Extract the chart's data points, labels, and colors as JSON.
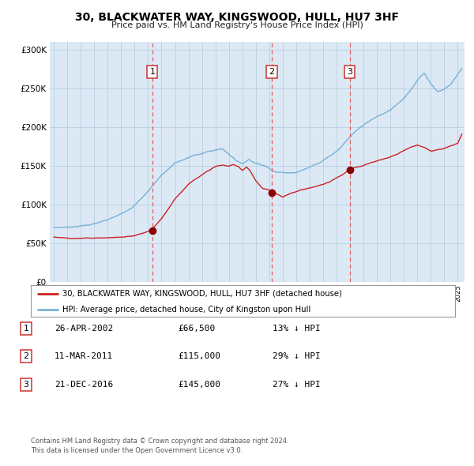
{
  "title": "30, BLACKWATER WAY, KINGSWOOD, HULL, HU7 3HF",
  "subtitle": "Price paid vs. HM Land Registry's House Price Index (HPI)",
  "plot_bg_color": "#dce9f5",
  "hpi_color": "#7ab0d4",
  "price_color": "#cc2222",
  "sale_marker_color": "#8b0000",
  "vline_color": "#e06060",
  "grid_color": "#b8cfe0",
  "purchases": [
    {
      "date_num": 2002.32,
      "price": 66500,
      "label": "1"
    },
    {
      "date_num": 2011.19,
      "price": 115000,
      "label": "2"
    },
    {
      "date_num": 2016.97,
      "price": 145000,
      "label": "3"
    }
  ],
  "legend_entries": [
    "30, BLACKWATER WAY, KINGSWOOD, HULL, HU7 3HF (detached house)",
    "HPI: Average price, detached house, City of Kingston upon Hull"
  ],
  "table_rows": [
    {
      "num": "1",
      "date": "26-APR-2002",
      "price": "£66,500",
      "hpi": "13% ↓ HPI"
    },
    {
      "num": "2",
      "date": "11-MAR-2011",
      "price": "£115,000",
      "hpi": "29% ↓ HPI"
    },
    {
      "num": "3",
      "date": "21-DEC-2016",
      "price": "£145,000",
      "hpi": "27% ↓ HPI"
    }
  ],
  "footer": "Contains HM Land Registry data © Crown copyright and database right 2024.\nThis data is licensed under the Open Government Licence v3.0.",
  "ylim": [
    0,
    310000
  ],
  "yticks": [
    0,
    50000,
    100000,
    150000,
    200000,
    250000,
    300000
  ],
  "xlim_start": 1994.7,
  "xlim_end": 2025.5,
  "hpi_keypoints": [
    [
      1995.0,
      70000
    ],
    [
      1996.0,
      71000
    ],
    [
      1997.0,
      73000
    ],
    [
      1998.0,
      76000
    ],
    [
      1999.0,
      80000
    ],
    [
      2000.0,
      87000
    ],
    [
      2001.0,
      100000
    ],
    [
      2002.0,
      118000
    ],
    [
      2003.0,
      140000
    ],
    [
      2004.0,
      155000
    ],
    [
      2005.0,
      162000
    ],
    [
      2006.0,
      168000
    ],
    [
      2007.0,
      172000
    ],
    [
      2007.5,
      174000
    ],
    [
      2008.0,
      168000
    ],
    [
      2008.5,
      160000
    ],
    [
      2009.0,
      156000
    ],
    [
      2009.5,
      162000
    ],
    [
      2010.0,
      158000
    ],
    [
      2010.5,
      155000
    ],
    [
      2011.0,
      152000
    ],
    [
      2011.5,
      148000
    ],
    [
      2012.0,
      147000
    ],
    [
      2013.0,
      148000
    ],
    [
      2014.0,
      155000
    ],
    [
      2015.0,
      165000
    ],
    [
      2016.0,
      178000
    ],
    [
      2017.0,
      196000
    ],
    [
      2018.0,
      210000
    ],
    [
      2019.0,
      220000
    ],
    [
      2020.0,
      228000
    ],
    [
      2021.0,
      245000
    ],
    [
      2022.0,
      268000
    ],
    [
      2022.5,
      278000
    ],
    [
      2023.0,
      265000
    ],
    [
      2023.5,
      255000
    ],
    [
      2024.0,
      258000
    ],
    [
      2024.5,
      265000
    ],
    [
      2025.0,
      278000
    ],
    [
      2025.3,
      285000
    ]
  ],
  "price_keypoints": [
    [
      1995.0,
      58000
    ],
    [
      1996.0,
      57000
    ],
    [
      1997.0,
      56500
    ],
    [
      1998.0,
      57000
    ],
    [
      1999.0,
      57500
    ],
    [
      2000.0,
      58000
    ],
    [
      2001.0,
      59000
    ],
    [
      2002.0,
      64000
    ],
    [
      2002.32,
      66500
    ],
    [
      2003.0,
      80000
    ],
    [
      2004.0,
      105000
    ],
    [
      2005.0,
      125000
    ],
    [
      2006.0,
      138000
    ],
    [
      2007.0,
      148000
    ],
    [
      2007.5,
      150000
    ],
    [
      2008.0,
      148000
    ],
    [
      2008.3,
      150000
    ],
    [
      2008.7,
      148000
    ],
    [
      2009.0,
      143000
    ],
    [
      2009.3,
      148000
    ],
    [
      2009.6,
      142000
    ],
    [
      2010.0,
      130000
    ],
    [
      2010.5,
      120000
    ],
    [
      2011.0,
      118000
    ],
    [
      2011.19,
      115000
    ],
    [
      2011.5,
      113000
    ],
    [
      2012.0,
      108000
    ],
    [
      2012.5,
      112000
    ],
    [
      2013.0,
      115000
    ],
    [
      2013.5,
      118000
    ],
    [
      2014.0,
      120000
    ],
    [
      2014.5,
      122000
    ],
    [
      2015.0,
      125000
    ],
    [
      2015.5,
      128000
    ],
    [
      2016.0,
      133000
    ],
    [
      2016.5,
      138000
    ],
    [
      2016.97,
      145000
    ],
    [
      2017.0,
      146000
    ],
    [
      2017.5,
      148000
    ],
    [
      2018.0,
      150000
    ],
    [
      2018.5,
      153000
    ],
    [
      2019.0,
      155000
    ],
    [
      2019.5,
      158000
    ],
    [
      2020.0,
      160000
    ],
    [
      2020.5,
      163000
    ],
    [
      2021.0,
      168000
    ],
    [
      2021.5,
      172000
    ],
    [
      2022.0,
      175000
    ],
    [
      2022.5,
      173000
    ],
    [
      2023.0,
      168000
    ],
    [
      2023.5,
      170000
    ],
    [
      2024.0,
      172000
    ],
    [
      2024.5,
      175000
    ],
    [
      2025.0,
      178000
    ],
    [
      2025.3,
      190000
    ]
  ]
}
